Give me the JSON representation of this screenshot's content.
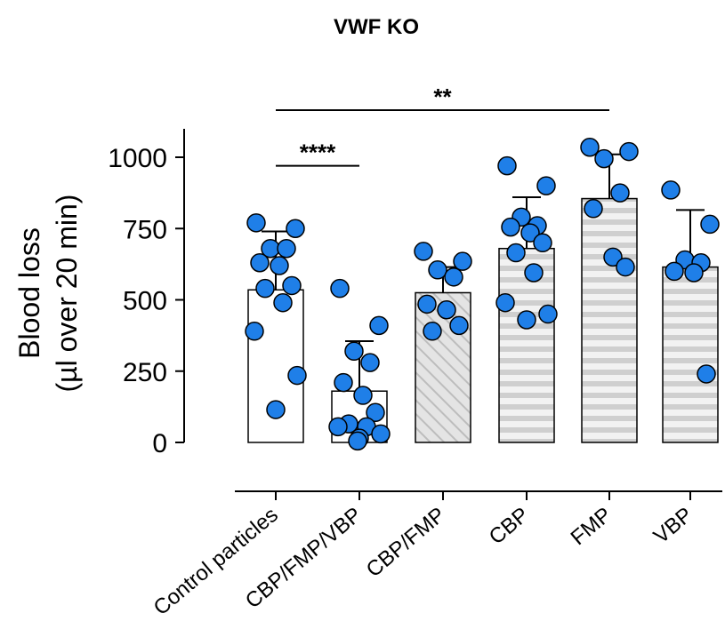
{
  "chart_data": {
    "type": "bar",
    "title": "VWF KO",
    "ylabel_lines": [
      "Blood loss",
      "(µl over 20 min)"
    ],
    "categories": [
      "Control particles",
      "CBP/FMP/VBP",
      "CBP/FMP",
      "CBP",
      "FMP",
      "VBP"
    ],
    "ylim": [
      0,
      1100
    ],
    "yticks": [
      0,
      250,
      500,
      750,
      1000
    ],
    "ytick_labels": [
      "0",
      "250",
      "500",
      "750",
      "1000"
    ],
    "grid": false,
    "legend": "none",
    "bars": [
      {
        "category": "Control particles",
        "mean": 535,
        "error_top": 740,
        "pattern": "none",
        "points": [
          770,
          750,
          680,
          680,
          630,
          620,
          550,
          540,
          490,
          390,
          235,
          115
        ]
      },
      {
        "category": "CBP/FMP/VBP",
        "mean": 180,
        "error_top": 355,
        "pattern": "none",
        "points": [
          540,
          410,
          320,
          280,
          210,
          165,
          105,
          65,
          55,
          55,
          30,
          15,
          5
        ]
      },
      {
        "category": "CBP/FMP",
        "mean": 525,
        "error_top": 615,
        "pattern": "diagonal",
        "points": [
          670,
          635,
          605,
          580,
          485,
          465,
          410,
          390
        ]
      },
      {
        "category": "CBP",
        "mean": 680,
        "error_top": 860,
        "pattern": "horizontal",
        "points": [
          970,
          900,
          790,
          760,
          755,
          735,
          700,
          665,
          595,
          490,
          450,
          430
        ]
      },
      {
        "category": "FMP",
        "mean": 855,
        "error_top": 1010,
        "pattern": "horizontal",
        "points": [
          1035,
          1020,
          995,
          875,
          820,
          650,
          615
        ]
      },
      {
        "category": "VBP",
        "mean": 615,
        "error_top": 815,
        "pattern": "horizontal",
        "points": [
          885,
          765,
          640,
          630,
          600,
          595,
          240
        ]
      }
    ],
    "annotations": [
      {
        "text": "****",
        "from": "Control particles",
        "to": "CBP/FMP/VBP",
        "y": 970
      },
      {
        "text": "**",
        "from": "Control particles",
        "to": "FMP",
        "y": 1165
      }
    ],
    "colors": {
      "bar_fill_plain": "#ffffff",
      "bar_fill_pattern": "#e4e4e4",
      "pattern_stroke": "#bdbdbd",
      "point_fill": "#1f7fe8",
      "stroke": "#000000"
    }
  }
}
